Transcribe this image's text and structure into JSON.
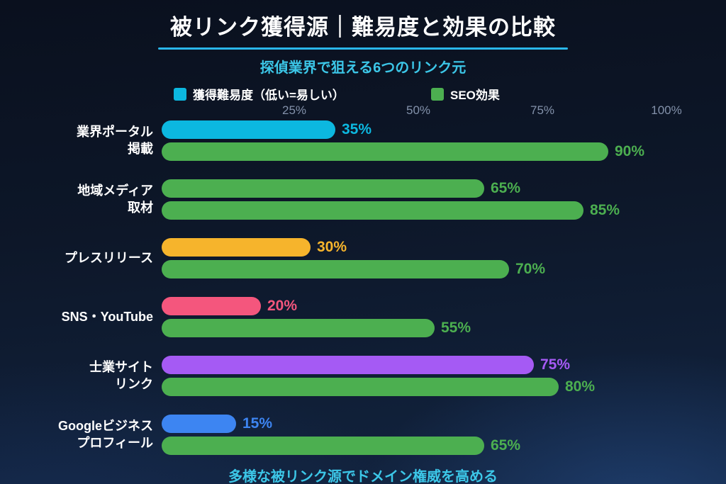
{
  "header": {
    "title": "被リンク獲得源｜難易度と効果の比較",
    "subtitle": "探偵業界で狙える6つのリンク元"
  },
  "legend": [
    {
      "id": "difficulty",
      "label": "獲得難易度（低い=易しい）",
      "color": "#0cb8e0"
    },
    {
      "id": "seo",
      "label": "SEO効果",
      "color": "#4caf50"
    }
  ],
  "footer": {
    "caption": "多様な被リンク源でドメイン権威を高める"
  },
  "accent_colors": {
    "title_underline": "#2ab7ea",
    "subtitle_text": "#3cc7e8",
    "tick_text": "#8391aa"
  },
  "chart_data": {
    "type": "bar",
    "orientation": "horizontal",
    "title": "被リンク獲得源｜難易度と効果の比較",
    "subtitle": "探偵業界で狙える6つのリンク元",
    "xlim": [
      0,
      100
    ],
    "grid": false,
    "legend_position": "top",
    "x_ticks": [
      {
        "value": 25,
        "label": "25%"
      },
      {
        "value": 50,
        "label": "50%"
      },
      {
        "value": 75,
        "label": "75%"
      },
      {
        "value": 100,
        "label": "100%"
      }
    ],
    "series_names": [
      "獲得難易度（低い=易しい）",
      "SEO効果"
    ],
    "categories": [
      "業界ポータル掲載",
      "地域メディア取材",
      "プレスリリース",
      "SNS・YouTube",
      "士業サイトリンク",
      "Googleビジネスプロフィール"
    ],
    "groups": [
      {
        "category": "業界ポータル掲載",
        "label_lines": [
          "業界ポータル",
          "掲載"
        ],
        "bars": [
          {
            "series": "獲得難易度",
            "value": 35,
            "label": "35%",
            "color": "#0cb8e0"
          },
          {
            "series": "SEO効果",
            "value": 90,
            "label": "90%",
            "color": "#4caf50"
          }
        ]
      },
      {
        "category": "地域メディア取材",
        "label_lines": [
          "地域メディア",
          "取材"
        ],
        "bars": [
          {
            "series": "獲得難易度",
            "value": 65,
            "label": "65%",
            "color": "#4caf50"
          },
          {
            "series": "SEO効果",
            "value": 85,
            "label": "85%",
            "color": "#4caf50"
          }
        ]
      },
      {
        "category": "プレスリリース",
        "label_lines": [
          "プレスリリース"
        ],
        "bars": [
          {
            "series": "獲得難易度",
            "value": 30,
            "label": "30%",
            "color": "#f6b42c"
          },
          {
            "series": "SEO効果",
            "value": 70,
            "label": "70%",
            "color": "#4caf50"
          }
        ]
      },
      {
        "category": "SNS・YouTube",
        "label_lines": [
          "SNS・YouTube"
        ],
        "bars": [
          {
            "series": "獲得難易度",
            "value": 20,
            "label": "20%",
            "color": "#f4567d"
          },
          {
            "series": "SEO効果",
            "value": 55,
            "label": "55%",
            "color": "#4caf50"
          }
        ]
      },
      {
        "category": "士業サイトリンク",
        "label_lines": [
          "士業サイト",
          "リンク"
        ],
        "bars": [
          {
            "series": "獲得難易度",
            "value": 75,
            "label": "75%",
            "color": "#a55af4"
          },
          {
            "series": "SEO効果",
            "value": 80,
            "label": "80%",
            "color": "#4caf50"
          }
        ]
      },
      {
        "category": "Googleビジネスプロフィール",
        "label_lines": [
          "Googleビジネス",
          "プロフィール"
        ],
        "bars": [
          {
            "series": "獲得難易度",
            "value": 15,
            "label": "15%",
            "color": "#3d85f2"
          },
          {
            "series": "SEO効果",
            "value": 65,
            "label": "65%",
            "color": "#4caf50"
          }
        ]
      }
    ]
  }
}
